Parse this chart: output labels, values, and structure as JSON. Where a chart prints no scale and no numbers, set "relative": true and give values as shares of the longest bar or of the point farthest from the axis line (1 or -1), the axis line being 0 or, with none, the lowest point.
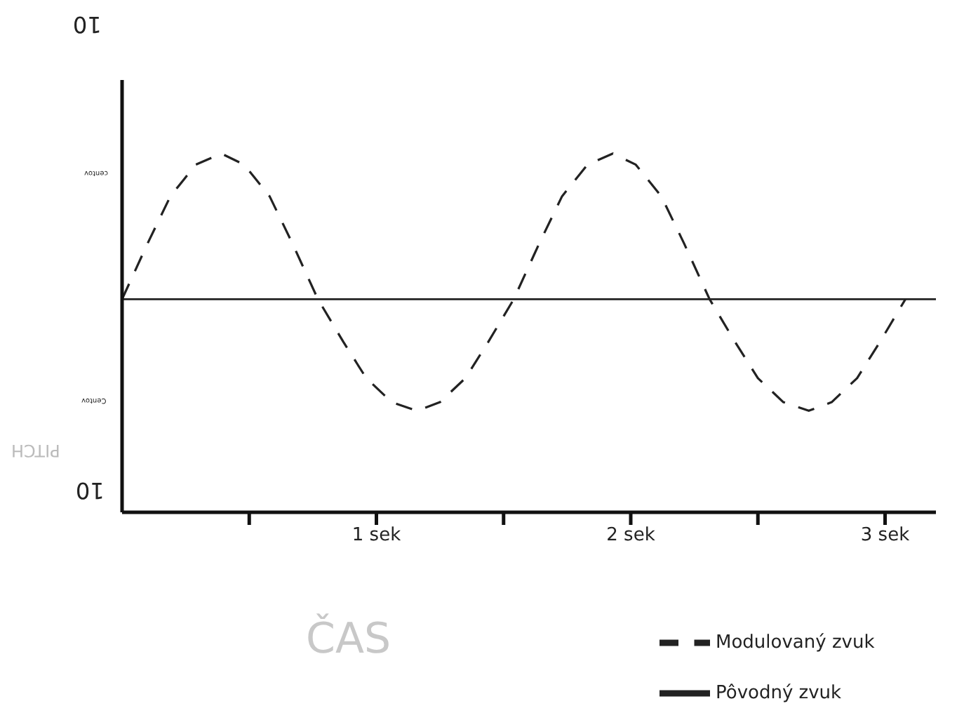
{
  "chart_data": {
    "type": "line",
    "xlabel": "ČAS",
    "ylabel": "PITCH",
    "relative": true,
    "xlim": [
      0,
      3.2
    ],
    "xticks": [
      {
        "value": 0.5,
        "label": null
      },
      {
        "value": 1,
        "label": "1 sek"
      },
      {
        "value": 1.5,
        "label": null
      },
      {
        "value": 2,
        "label": "2 sek"
      },
      {
        "value": 2.5,
        "label": null
      },
      {
        "value": 3,
        "label": "3 sek"
      }
    ],
    "annotations": [
      "10",
      "centov",
      "Centov",
      "10"
    ],
    "legend": "bottom right",
    "grid": false,
    "series": [
      {
        "name": "Modulovaný zvuk",
        "color": "#222222",
        "line_style": "dashed",
        "x": [
          0,
          0.1,
          0.19,
          0.29,
          0.39,
          0.48,
          0.58,
          0.67,
          0.77,
          0.87,
          0.96,
          1.06,
          1.16,
          1.25,
          1.35,
          1.44,
          1.54,
          1.64,
          1.73,
          1.83,
          1.93,
          2.02,
          2.12,
          2.21,
          2.31,
          2.41,
          2.5,
          2.6,
          2.7,
          2.79,
          2.89,
          2.98,
          3.08
        ],
        "values": [
          0.594,
          0.749,
          0.881,
          0.969,
          1.0,
          0.969,
          0.881,
          0.749,
          0.594,
          0.475,
          0.374,
          0.307,
          0.283,
          0.307,
          0.374,
          0.475,
          0.594,
          0.749,
          0.881,
          0.969,
          1.0,
          0.969,
          0.881,
          0.749,
          0.594,
          0.475,
          0.374,
          0.307,
          0.283,
          0.307,
          0.374,
          0.475,
          0.594
        ]
      },
      {
        "name": "Pôvodný zvuk",
        "color": "#222222",
        "line_style": "solid",
        "x": [
          0,
          3.2
        ],
        "values": [
          0.594,
          0.594
        ]
      }
    ]
  }
}
